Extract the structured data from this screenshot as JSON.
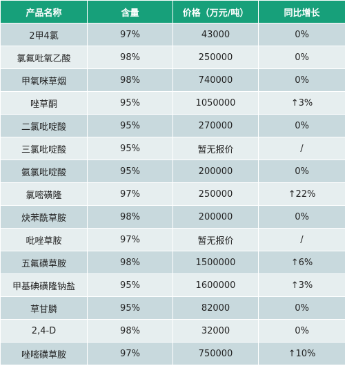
{
  "colors": {
    "header_bg": "#17a07a",
    "row_dark": "#c8d9dd",
    "row_light": "#e6eeef",
    "text": "#222222"
  },
  "table": {
    "headers": [
      "产品名称",
      "含量",
      "价格（万元/吨）",
      "同比增长"
    ],
    "rows": [
      [
        "2甲4氯",
        "97%",
        "43000",
        "0%"
      ],
      [
        "氯氟吡氧乙酸",
        "98%",
        "250000",
        "0%"
      ],
      [
        "甲氧咪草烟",
        "98%",
        "740000",
        "0%"
      ],
      [
        "唑草酮",
        "95%",
        "1050000",
        "↑3%"
      ],
      [
        "二氯吡啶酸",
        "95%",
        "270000",
        "0%"
      ],
      [
        "三氯吡啶酸",
        "95%",
        "暂无报价",
        "/"
      ],
      [
        "氨氯吡啶酸",
        "95%",
        "200000",
        "0%"
      ],
      [
        "氯嘧磺隆",
        "97%",
        "250000",
        "↑22%"
      ],
      [
        "炔苯酰草胺",
        "98%",
        "200000",
        "0%"
      ],
      [
        "吡唑草胺",
        "97%",
        "暂无报价",
        "/"
      ],
      [
        "五氟磺草胺",
        "98%",
        "1500000",
        "↑6%"
      ],
      [
        "甲基碘磺隆钠盐",
        "95%",
        "1600000",
        "↑3%"
      ],
      [
        "草甘膦",
        "95%",
        "82000",
        "0%"
      ],
      [
        "2,4-D",
        "98%",
        "32000",
        "0%"
      ],
      [
        "唑嘧磺草胺",
        "97%",
        "750000",
        "↑10%"
      ]
    ]
  }
}
